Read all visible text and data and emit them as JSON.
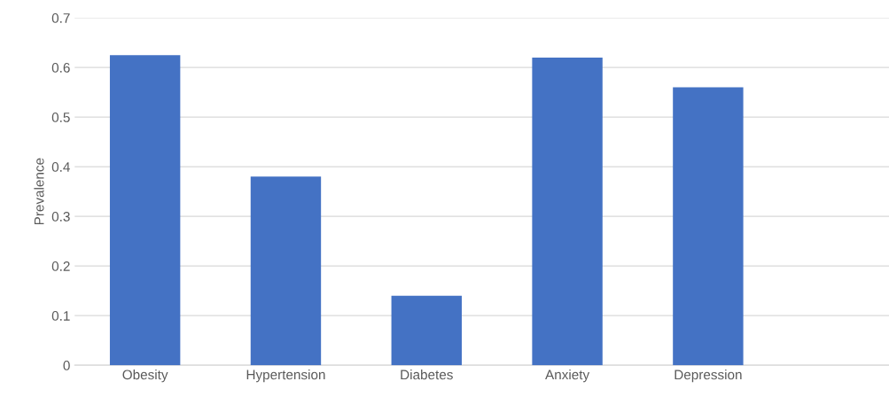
{
  "chart_data": {
    "type": "bar",
    "ylabel": "Prevalence",
    "categories": [
      "Obesity",
      "Hypertension",
      "Diabetes",
      "Anxiety",
      "Depression",
      null
    ],
    "values": [
      0.625,
      0.38,
      0.14,
      0.62,
      0.56,
      null
    ],
    "color": "#4472c4",
    "ylim": [
      0,
      0.7
    ],
    "yticks": [
      {
        "value": 0,
        "label": "0"
      },
      0.1,
      0.2,
      0.3,
      0.4,
      0.5,
      0.6,
      0.7
    ],
    "grid": "y"
  }
}
